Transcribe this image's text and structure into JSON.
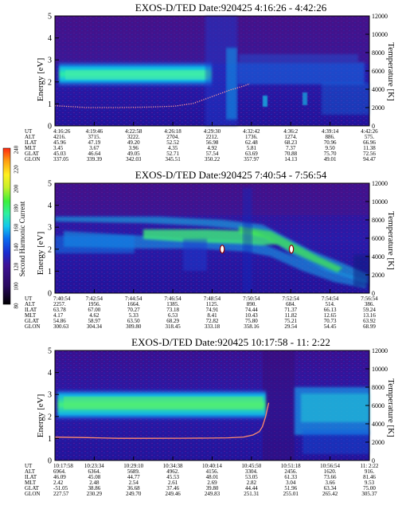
{
  "panels": [
    {
      "title": "EXOS-D/TED  Date:920425  4:16:26 - 4:42:26",
      "ylabel_left": "Energy [eV]",
      "ylabel_right": "Temperature [K]",
      "energy_ticks": [
        "0",
        "1",
        "2",
        "3",
        "4",
        "5"
      ],
      "temp_ticks": [
        "0",
        "2000",
        "4000",
        "6000",
        "8000",
        "10000",
        "12000"
      ],
      "row_labels": [
        "UT",
        "ALT",
        "ILAT",
        "MLT",
        "GLAT",
        "GLON"
      ],
      "columns": [
        [
          "4:16:26",
          "4216.",
          "45.96",
          "3.45",
          "45.03",
          "337.05"
        ],
        [
          "4:19:46",
          "3715.",
          "47.19",
          "3.67",
          "46.64",
          "339.39"
        ],
        [
          "4:22:58",
          "3222.",
          "49.20",
          "3.96",
          "49.05",
          "342.03"
        ],
        [
          "4:26:18",
          "2704.",
          "52.52",
          "4.35",
          "52.71",
          "345.51"
        ],
        [
          "4:29:30",
          "2212.",
          "56.98",
          "4.92",
          "57.54",
          "350.22"
        ],
        [
          "4:32:42",
          "1736.",
          "62.48",
          "5.81",
          "63.69",
          "357.97"
        ],
        [
          "4:36:2",
          "1274.",
          "68.23",
          "7.37",
          "70.88",
          "14.13"
        ],
        [
          "4:39:14",
          "886.",
          "70.96",
          "9.50",
          "75.70",
          "49.01"
        ],
        [
          "4:42:26",
          "575.",
          "66.96",
          "11.38",
          "72.56",
          "94.47"
        ]
      ],
      "temperature_profile": {
        "x_fraction": [
          0,
          0.05,
          0.1,
          0.2,
          0.3,
          0.38,
          0.44,
          0.48,
          0.52,
          0.56,
          0.6,
          0.62
        ],
        "temperature_K": [
          2200,
          2100,
          2000,
          2000,
          2050,
          2150,
          2450,
          2950,
          3450,
          3950,
          4350,
          4600
        ]
      }
    },
    {
      "title": "EXOS-D/TED  Date:920425  7:40:54 - 7:56:54",
      "ylabel_left": "Energy [eV]",
      "ylabel_right": "Temperature [K]",
      "energy_ticks": [
        "0",
        "1",
        "2",
        "3",
        "4",
        "5"
      ],
      "temp_ticks": [
        "0",
        "2000",
        "4000",
        "6000",
        "8000",
        "10000",
        "12000"
      ],
      "row_labels": [
        "UT",
        "ALT",
        "ILAT",
        "MLT",
        "GLAT",
        "GLON"
      ],
      "columns": [
        [
          "7:40:54",
          "2257.",
          "63.78",
          "4.17",
          "54.86",
          "300.63"
        ],
        [
          "7:42:54",
          "1956.",
          "67.00",
          "4.62",
          "58.97",
          "304.34"
        ],
        [
          "7:44:54",
          "1664.",
          "70.27",
          "5.33",
          "63.50",
          "309.80"
        ],
        [
          "7:46:54",
          "1385.",
          "73.18",
          "6.53",
          "68.29",
          "318.45"
        ],
        [
          "7:48:54",
          "1125.",
          "74.91",
          "8.41",
          "72.82",
          "333.18"
        ],
        [
          "7:50:54",
          "890.",
          "74.44",
          "10.43",
          "75.80",
          "358.16"
        ],
        [
          "7:52:54",
          "684.",
          "71.37",
          "11.82",
          "75.21",
          "29.54"
        ],
        [
          "7:54:54",
          "514.",
          "66.13",
          "12.65",
          "70.73",
          "54.45"
        ],
        [
          "7:56:54",
          "386.",
          "59.24",
          "13.16",
          "63.92",
          "68.99"
        ]
      ],
      "markers": [
        {
          "x_fraction": 0.532,
          "energy_eV": 2.0
        },
        {
          "x_fraction": 0.752,
          "energy_eV": 2.0
        }
      ]
    },
    {
      "title": "EXOS-D/TED  Date:920425  10:17:58 - 11: 2:22",
      "ylabel_left": "Energy [eV]",
      "ylabel_right": "Temperature [K]",
      "energy_ticks": [
        "0",
        "1",
        "2",
        "3",
        "4",
        "5"
      ],
      "temp_ticks": [
        "0",
        "2000",
        "4000",
        "6000",
        "8000",
        "10000",
        "12000"
      ],
      "row_labels": [
        "UT",
        "ALT",
        "ILAT",
        "MLT",
        "GLAT",
        "GLON"
      ],
      "columns": [
        [
          "10:17:58",
          "6964.",
          "46.09",
          "2.42",
          "-51.05",
          "227.57"
        ],
        [
          "10:23:34",
          "6364.",
          "45.08",
          "2.48",
          "38.86",
          "230.29"
        ],
        [
          "10:29:10",
          "5689.",
          "44.77",
          "2.54",
          "36.68",
          "249.70"
        ],
        [
          "10:34:38",
          "4962.",
          "45.53",
          "2.61",
          "37.46",
          "249.46"
        ],
        [
          "10:40:14",
          "4156.",
          "48.01",
          "2.69",
          "39.80",
          "249.83"
        ],
        [
          "10:45:50",
          "3304.",
          "53.05",
          "2.82",
          "44.44",
          "251.31"
        ],
        [
          "10:51:18",
          "2456.",
          "61.33",
          "3.04",
          "51.96",
          "255.01"
        ],
        [
          "10:56:54",
          "1620.",
          "73.66",
          "3.66",
          "63.34",
          "265.42"
        ],
        [
          "11: 2:22",
          "916.",
          "81.46",
          "9.53",
          "75.00",
          "305.37"
        ]
      ],
      "temperature_profile": {
        "x_fraction": [
          0,
          0.1,
          0.2,
          0.3,
          0.4,
          0.5,
          0.55,
          0.6,
          0.63,
          0.65,
          0.66,
          0.67,
          0.68
        ],
        "temperature_K": [
          2550,
          2500,
          2420,
          2420,
          2430,
          2440,
          2470,
          2560,
          2780,
          3150,
          3700,
          4800,
          6300
        ]
      }
    }
  ],
  "colorbar": {
    "label": "Second Harmonic Current",
    "ticks": [
      "80",
      "100",
      "120",
      "140",
      "160",
      "180",
      "200",
      "220",
      "240"
    ],
    "colors": [
      "#000000",
      "#2a0a60",
      "#3e1296",
      "#1a2cd0",
      "#0a6cf0",
      "#14c8ec",
      "#2ff0a0",
      "#3cf03c",
      "#c8f028",
      "#fff020",
      "#ff9c10",
      "#ff2810"
    ]
  },
  "chart_data": [
    {
      "type": "heatmap",
      "title": "EXOS-D/TED  Date:920425  4:16:26 - 4:42:26",
      "xlabel": "UT",
      "ylabel": "Energy [eV]",
      "ylabel_right": "Temperature [K]",
      "x_ticks": [
        "4:16:26",
        "4:19:46",
        "4:22:58",
        "4:26:18",
        "4:29:30",
        "4:32:42",
        "4:36:2",
        "4:39:14",
        "4:42:26"
      ],
      "ylim": [
        0,
        5
      ],
      "ylim_right": [
        0,
        12000
      ],
      "color_range": [
        80,
        240
      ],
      "series": [
        {
          "name": "",
          "x": [
            0,
            0.05,
            0.1,
            0.2,
            0.3,
            0.38,
            0.44,
            0.48,
            0.52,
            0.56,
            0.6,
            0.62
          ],
          "values": [
            2200,
            2100,
            2000,
            2000,
            2050,
            2150,
            2450,
            2950,
            3450,
            3950,
            4350,
            4600
          ]
        }
      ]
    },
    {
      "type": "heatmap",
      "title": "EXOS-D/TED  Date:920425  7:40:54 - 7:56:54",
      "xlabel": "UT",
      "ylabel": "Energy [eV]",
      "ylabel_right": "Temperature [K]",
      "x_ticks": [
        "7:40:54",
        "7:42:54",
        "7:44:54",
        "7:46:54",
        "7:48:54",
        "7:50:54",
        "7:52:54",
        "7:54:54",
        "7:56:54"
      ],
      "ylim": [
        0,
        5
      ],
      "ylim_right": [
        0,
        12000
      ],
      "color_range": [
        80,
        240
      ]
    },
    {
      "type": "heatmap",
      "title": "EXOS-D/TED  Date:920425  10:17:58 - 11: 2:22",
      "xlabel": "UT",
      "ylabel": "Energy [eV]",
      "ylabel_right": "Temperature [K]",
      "x_ticks": [
        "10:17:58",
        "10:23:34",
        "10:29:10",
        "10:34:38",
        "10:40:14",
        "10:45:50",
        "10:51:18",
        "10:56:54",
        "11: 2:22"
      ],
      "ylim": [
        0,
        5
      ],
      "ylim_right": [
        0,
        12000
      ],
      "color_range": [
        80,
        240
      ],
      "series": [
        {
          "name": "",
          "x": [
            0,
            0.1,
            0.2,
            0.3,
            0.4,
            0.5,
            0.55,
            0.6,
            0.63,
            0.65,
            0.66,
            0.67,
            0.68
          ],
          "values": [
            2550,
            2500,
            2420,
            2420,
            2430,
            2440,
            2470,
            2560,
            2780,
            3150,
            3700,
            4800,
            6300
          ]
        }
      ]
    }
  ]
}
